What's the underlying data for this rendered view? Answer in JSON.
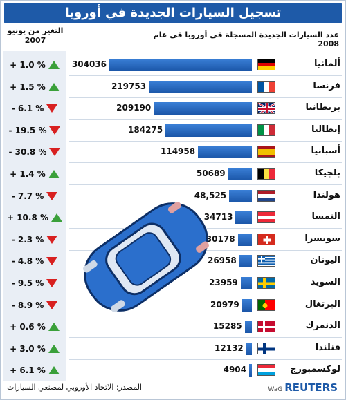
{
  "title": "تسجيل السيارات الجديدة في أوروبا",
  "header_right": "عدد السيارات الجديدة المسجلة في أوروبا في عام 2008",
  "header_left": "التغير من يونيو 2007",
  "footer": {
    "source": "المصدر: الاتحاد الأوروبي لمصنعي السيارات",
    "wag": "WaG",
    "brand": "REUTERS"
  },
  "colors": {
    "title_bg": "#1e5aa8",
    "bar": "#1b56a8",
    "up": "#3aa03a",
    "down": "#d82020"
  },
  "chart_data": {
    "type": "bar",
    "orientation": "horizontal",
    "categories": [
      "ألمانيا",
      "فرنسا",
      "بريطانيا",
      "إيطاليا",
      "أسبانيا",
      "بلجيكا",
      "هولندا",
      "النمسا",
      "سويسرا",
      "اليونان",
      "السويد",
      "البرتغال",
      "الدنمرك",
      "فنلندا",
      "لوكسمبورج"
    ],
    "values": [
      304036,
      219753,
      209190,
      184275,
      114958,
      50689,
      48525,
      34713,
      30178,
      26958,
      23959,
      20979,
      15285,
      12132,
      4904
    ],
    "value_labels": [
      "304036",
      "219753",
      "209190",
      "184275",
      "114958",
      "50689",
      "48,525",
      "34713",
      "30178",
      "26958",
      "23959",
      "20979",
      "15285",
      "12132",
      "4904"
    ],
    "change_labels": [
      "+ 1.0 %",
      "+ 1.5 %",
      "- 6.1 %",
      "- 19.5 %",
      "- 30.8 %",
      "+ 1.4 %",
      "- 7.7 %",
      "+ 10.8 %",
      "- 2.3 %",
      "- 4.8 %",
      "- 9.5 %",
      "- 8.9 %",
      "+ 0.6 %",
      "+ 3.0 %",
      "+ 6.1 %"
    ],
    "change_direction": [
      "up",
      "up",
      "down",
      "down",
      "down",
      "up",
      "down",
      "up",
      "down",
      "down",
      "down",
      "down",
      "up",
      "up",
      "up"
    ],
    "flags": [
      "germany",
      "france",
      "uk",
      "italy",
      "spain",
      "belgium",
      "netherlands",
      "austria",
      "switzerland",
      "greece",
      "sweden",
      "portugal",
      "denmark",
      "finland",
      "luxembourg"
    ]
  }
}
